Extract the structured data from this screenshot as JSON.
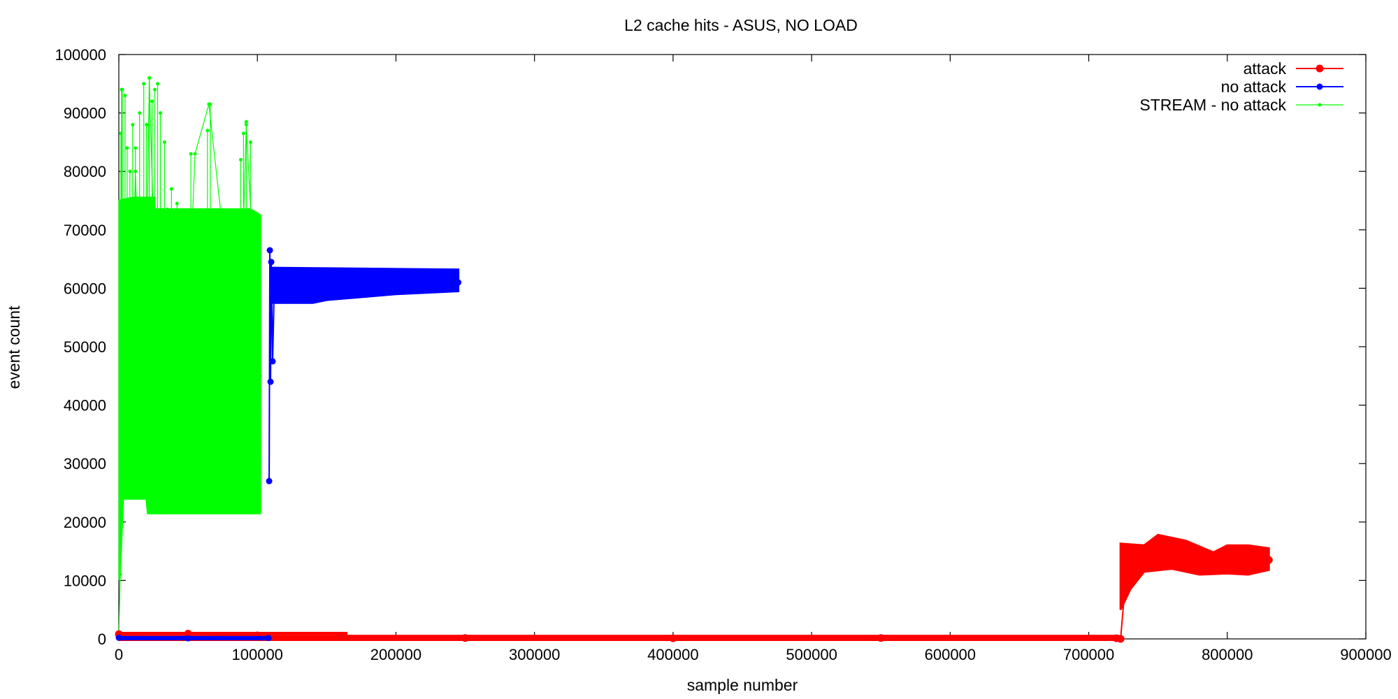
{
  "chart_data": {
    "type": "line",
    "title": "L2 cache hits - ASUS, NO LOAD",
    "xlabel": "sample number",
    "ylabel": "event count",
    "xlim": [
      0,
      900000
    ],
    "ylim": [
      0,
      100000
    ],
    "xticks": [
      0,
      100000,
      200000,
      300000,
      400000,
      500000,
      600000,
      700000,
      800000,
      900000
    ],
    "yticks": [
      0,
      10000,
      20000,
      30000,
      40000,
      50000,
      60000,
      70000,
      80000,
      90000,
      100000
    ],
    "grid": false,
    "legend_position": "top-right",
    "series": [
      {
        "name": "attack",
        "color": "#ff0000",
        "marker": "large-dot",
        "segments": [
          {
            "x": [
              0,
              50000,
              100000,
              160000,
              250000,
              400000,
              550000,
              720000
            ],
            "y": [
              800,
              900,
              600,
              400,
              150,
              100,
              150,
              100
            ]
          },
          {
            "x": [
              723000,
              728000,
              733000,
              740000,
              750000,
              760000,
              770000,
              780000,
              790000,
              800000,
              810000,
              820000,
              830000
            ],
            "y": [
              0,
              14000,
              12500,
              13500,
              14500,
              13800,
              14200,
              13000,
              12800,
              14500,
              13200,
              14000,
              13500
            ]
          }
        ],
        "bands": [
          {
            "x0": 723000,
            "x1": 830000,
            "lower": [
              [
                723000,
                5000
              ],
              [
                730000,
                8500
              ],
              [
                740000,
                11500
              ],
              [
                760000,
                12000
              ],
              [
                780000,
                11000
              ],
              [
                800000,
                11200
              ],
              [
                815000,
                11000
              ],
              [
                830000,
                11800
              ]
            ],
            "upper": [
              [
                723000,
                16300
              ],
              [
                740000,
                16000
              ],
              [
                750000,
                17800
              ],
              [
                770000,
                16800
              ],
              [
                790000,
                14800
              ],
              [
                800000,
                16000
              ],
              [
                815000,
                16000
              ],
              [
                830000,
                15500
              ]
            ]
          }
        ]
      },
      {
        "name": "no attack",
        "color": "#0000ff",
        "marker": "medium-dot",
        "segments": [
          {
            "x": [
              0,
              50000,
              108000
            ],
            "y": [
              200,
              100,
              150
            ]
          },
          {
            "x": [
              108500,
              109000,
              109500,
              110000,
              111000,
              112000,
              115000,
              120000,
              140000,
              160000,
              180000,
              200000,
              220000,
              240000,
              245000
            ],
            "y": [
              27000,
              66500,
              44000,
              64500,
              47500,
              58500,
              61000,
              60500,
              60800,
              61000,
              61200,
              61000,
              61200,
              61300,
              61000
            ]
          }
        ],
        "bands": [
          {
            "x0": 110000,
            "x1": 245000,
            "lower": [
              [
                110000,
                57500
              ],
              [
                140000,
                57500
              ],
              [
                150000,
                58000
              ],
              [
                200000,
                59000
              ],
              [
                245000,
                59500
              ]
            ],
            "upper": [
              [
                110000,
                63500
              ],
              [
                245000,
                63200
              ]
            ]
          }
        ]
      },
      {
        "name": "STREAM - no attack",
        "color": "#00ff00",
        "marker": "small-dot",
        "segments": [
          {
            "x": [
              0,
              1000,
              2000,
              3000,
              5000,
              8000,
              12000,
              18000,
              22000,
              28000,
              35000,
              45000,
              55000,
              65000,
              75000,
              85000,
              92000,
              98000,
              102000
            ],
            "y": [
              200,
              11000,
              94000,
              60000,
              75000,
              40000,
              80000,
              30000,
              96000,
              45000,
              73500,
              25000,
              83000,
              91500,
              70000,
              30000,
              88000,
              60000,
              45000
            ]
          }
        ],
        "bands": [
          {
            "x0": 0,
            "x1": 102000,
            "lower": [
              [
                500,
                10000
              ],
              [
                3000,
                24000
              ],
              [
                20000,
                24000
              ],
              [
                21000,
                21500
              ],
              [
                102000,
                21500
              ]
            ],
            "upper": [
              [
                500,
                75000
              ],
              [
                10000,
                75500
              ],
              [
                25000,
                75500
              ],
              [
                26000,
                73500
              ],
              [
                95000,
                73500
              ],
              [
                102000,
                72500
              ]
            ]
          }
        ],
        "spikes": [
          [
            1500,
            86500
          ],
          [
            2500,
            94000
          ],
          [
            4500,
            93000
          ],
          [
            6000,
            84000
          ],
          [
            8000,
            80000
          ],
          [
            10000,
            88000
          ],
          [
            12000,
            84000
          ],
          [
            15000,
            90000
          ],
          [
            18000,
            95000
          ],
          [
            20000,
            88000
          ],
          [
            22000,
            96000
          ],
          [
            24000,
            92000
          ],
          [
            26000,
            94000
          ],
          [
            28000,
            95000
          ],
          [
            30000,
            90000
          ],
          [
            33000,
            85000
          ],
          [
            38000,
            77000
          ],
          [
            42000,
            74500
          ],
          [
            52000,
            83000
          ],
          [
            64000,
            87000
          ],
          [
            66000,
            91500
          ],
          [
            88000,
            82000
          ],
          [
            90000,
            86500
          ],
          [
            92000,
            88500
          ],
          [
            95000,
            85000
          ]
        ]
      }
    ]
  }
}
